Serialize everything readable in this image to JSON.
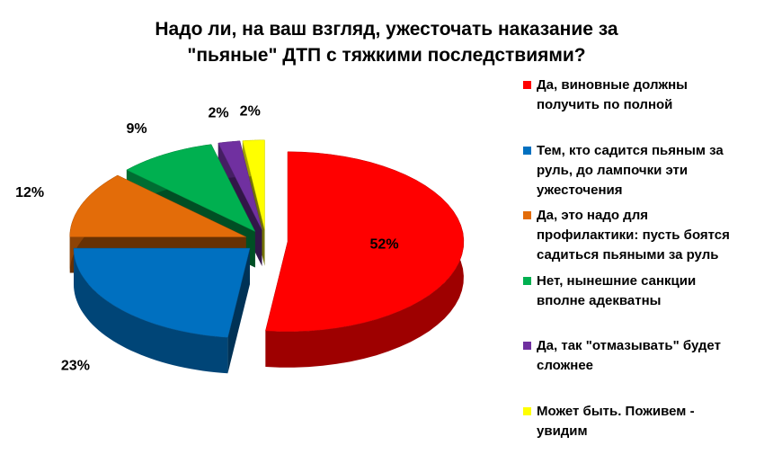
{
  "chart_data": {
    "type": "pie3d",
    "title": "Надо ли, на ваш взгляд, ужесточать наказание за \"пьяные\" ДТП с тяжкими последствиями?",
    "series": [
      {
        "name": "Да, виновные должны получить по полной",
        "color": "#ff0000",
        "values": [
          52
        ],
        "value_labels": [
          "52%"
        ]
      },
      {
        "name": "Тем, кто садится пьяным за руль, до лампочки эти ужесточения",
        "color": "#0070c0",
        "values": [
          23
        ],
        "value_labels": [
          "23%"
        ]
      },
      {
        "name": "Да, это надо для профилактики: пусть боятся садиться пьяными за руль",
        "color": "#e36c09",
        "values": [
          12
        ],
        "value_labels": [
          "12%"
        ]
      },
      {
        "name": "Нет, нынешние санкции вполне адекватны",
        "color": "#00b050",
        "values": [
          9
        ],
        "value_labels": [
          "9%"
        ]
      },
      {
        "name": "Да, так \"отмазывать\" будет сложнее",
        "color": "#7030a0",
        "values": [
          2
        ],
        "value_labels": [
          "2%"
        ]
      },
      {
        "name": "Может быть. Поживем - увидим",
        "color": "#ffff00",
        "values": [
          2
        ],
        "value_labels": [
          "2%"
        ]
      }
    ],
    "legend": "right"
  }
}
